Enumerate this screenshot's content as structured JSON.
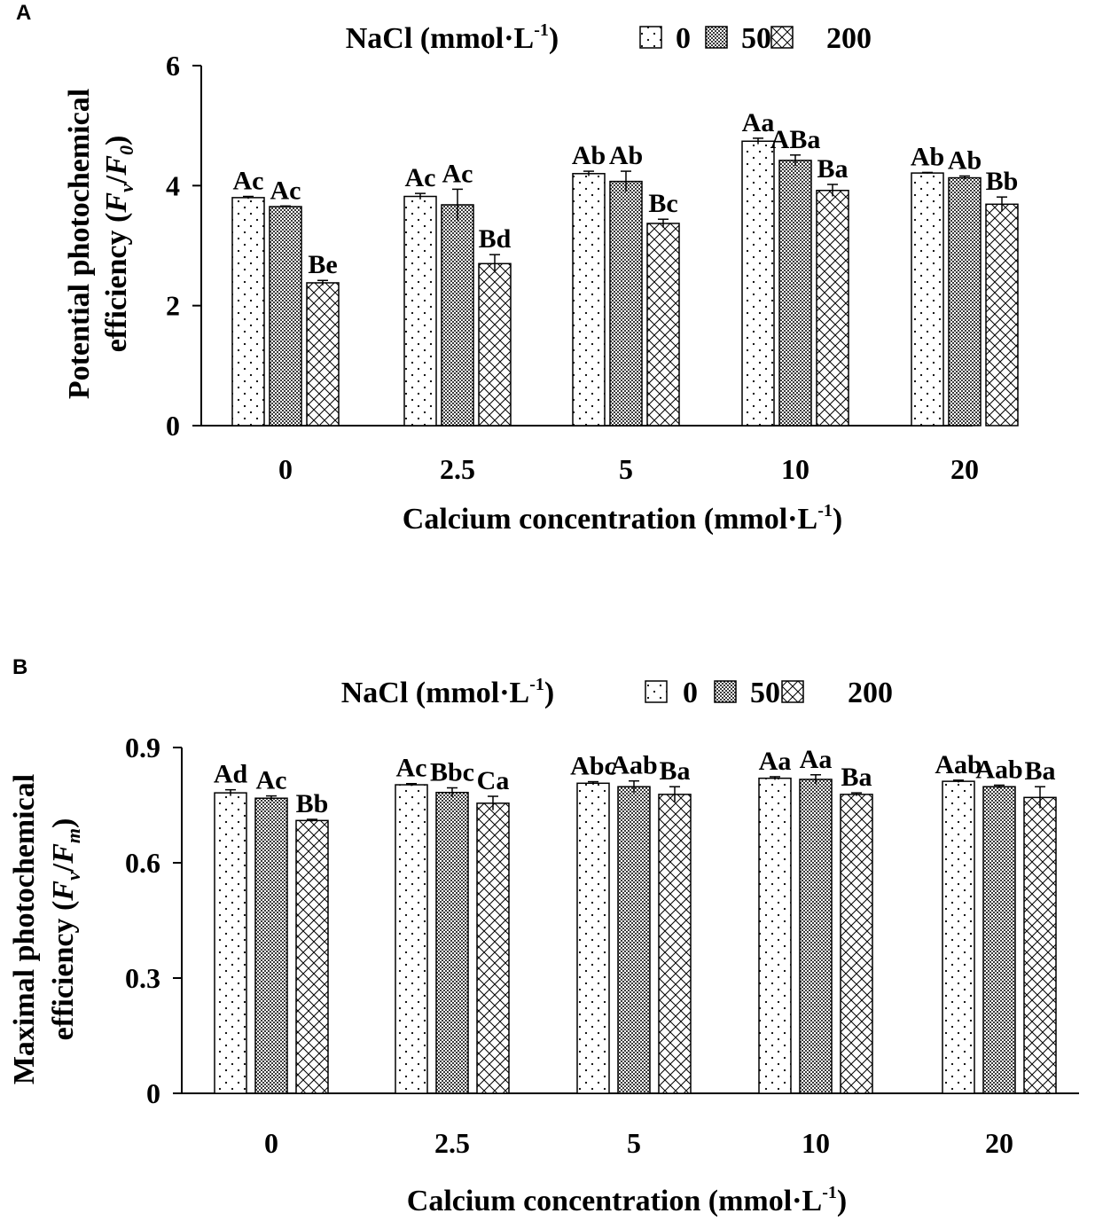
{
  "chart_data": [
    {
      "panel": "A",
      "type": "bar",
      "categories": [
        "0",
        "2.5",
        "5",
        "10",
        "20"
      ],
      "xlabel": "Calcium concentration (mmol·L-1)",
      "xlabel_main": "Calcium concentration (mmol·L",
      "xlabel_sup": "-1",
      "xlabel_close": ")",
      "ylabel_line1": "Potential photochemical",
      "ylabel_line2_pre": "efficiency (",
      "ylabel_var1": "F",
      "ylabel_sub1": "v",
      "ylabel_slash": "/",
      "ylabel_var2": "F",
      "ylabel_sub2": "0",
      "ylabel_close": ")",
      "ylim": [
        0,
        6
      ],
      "yticks": [
        "0",
        "2",
        "4",
        "6"
      ],
      "legend_title_main": "NaCl (mmol·L",
      "legend_title_sup": "-1",
      "legend_title_close": ")",
      "series": [
        {
          "name": "0",
          "pattern": "dots",
          "values": [
            3.8,
            3.82,
            4.2,
            4.74,
            4.21
          ],
          "errors": [
            0.02,
            0.05,
            0.04,
            0.05,
            0.01
          ],
          "labels": [
            "Ac",
            "Ac",
            "Ab",
            "Aa",
            "Ab"
          ]
        },
        {
          "name": "50",
          "pattern": "dense",
          "values": [
            3.65,
            3.68,
            4.07,
            4.42,
            4.13
          ],
          "errors": [
            0.01,
            0.26,
            0.17,
            0.09,
            0.03
          ],
          "labels": [
            "Ac",
            "Ac",
            "Ab",
            "ABa",
            "Ab"
          ]
        },
        {
          "name": "200",
          "pattern": "cross",
          "values": [
            2.38,
            2.7,
            3.37,
            3.92,
            3.69
          ],
          "errors": [
            0.04,
            0.15,
            0.07,
            0.1,
            0.12
          ],
          "labels": [
            "Be",
            "Bd",
            "Bc",
            "Ba",
            "Bb"
          ]
        }
      ]
    },
    {
      "panel": "B",
      "type": "bar",
      "categories": [
        "0",
        "2.5",
        "5",
        "10",
        "20"
      ],
      "xlabel": "Calcium concentration (mmol·L-1)",
      "xlabel_main": "Calcium concentration (mmol·L",
      "xlabel_sup": "-1",
      "xlabel_close": ")",
      "ylabel_line1": "Maximal photochemical",
      "ylabel_line2_pre": "efficiency (",
      "ylabel_var1": "F",
      "ylabel_sub1": "v",
      "ylabel_slash": "/",
      "ylabel_var2": "F",
      "ylabel_sub2": "m",
      "ylabel_close": ")",
      "ylim": [
        0,
        0.9
      ],
      "yticks": [
        "0",
        "0.3",
        "0.6",
        "0.9"
      ],
      "legend_title_main": "NaCl (mmol·L",
      "legend_title_sup": "-1",
      "legend_title_close": ")",
      "series": [
        {
          "name": "0",
          "pattern": "dots",
          "values": [
            0.782,
            0.803,
            0.807,
            0.82,
            0.812
          ],
          "errors": [
            0.008,
            0.003,
            0.004,
            0.004,
            0.003
          ],
          "labels": [
            "Ad",
            "Ac",
            "Abc",
            "Aa",
            "Aab"
          ]
        },
        {
          "name": "50",
          "pattern": "dense",
          "values": [
            0.768,
            0.783,
            0.798,
            0.817,
            0.798
          ],
          "errors": [
            0.006,
            0.012,
            0.015,
            0.012,
            0.004
          ],
          "labels": [
            "Ac",
            "Bbc",
            "Aab",
            "Aa",
            "Aab"
          ]
        },
        {
          "name": "200",
          "pattern": "cross",
          "values": [
            0.71,
            0.755,
            0.778,
            0.778,
            0.77
          ],
          "errors": [
            0.003,
            0.018,
            0.02,
            0.004,
            0.028
          ],
          "labels": [
            "Bb",
            "Ca",
            "Ba",
            "Ba",
            "Ba"
          ]
        }
      ]
    }
  ],
  "panel_letters": [
    "A",
    "B"
  ]
}
